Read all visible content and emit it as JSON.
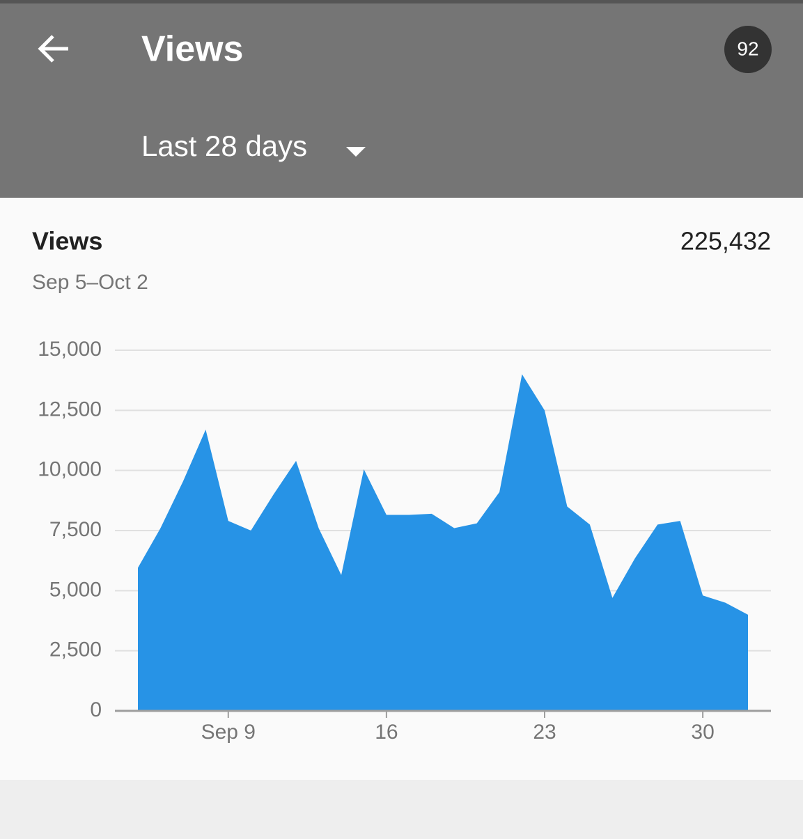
{
  "header": {
    "title": "Views",
    "badge": "92",
    "range": "Last 28 days"
  },
  "card": {
    "title": "Views",
    "total": "225,432",
    "dates": "Sep 5–Oct 2"
  },
  "chart_data": {
    "type": "area",
    "categories": [
      null,
      null,
      null,
      null,
      "Sep 9",
      null,
      null,
      null,
      null,
      null,
      null,
      "16",
      null,
      null,
      null,
      null,
      null,
      null,
      "23",
      null,
      null,
      null,
      null,
      null,
      null,
      "30",
      null,
      null
    ],
    "values": [
      5950,
      7600,
      9550,
      11700,
      7900,
      7500,
      9000,
      10400,
      7600,
      5650,
      10050,
      8150,
      8150,
      8200,
      7600,
      7800,
      9100,
      14000,
      12500,
      8500,
      7750,
      4700,
      6350,
      7750,
      7900,
      4800,
      4500,
      4000
    ],
    "color": "#2793e6",
    "ylim": [
      0,
      15000
    ],
    "yticks": [
      0,
      {
        "value": 2500,
        "label": "2,500"
      },
      {
        "value": 5000,
        "label": "5,000"
      },
      {
        "value": 7500,
        "label": "7,500"
      },
      {
        "value": 10000,
        "label": "10,000"
      },
      {
        "value": 12500,
        "label": "12,500"
      },
      {
        "value": 15000,
        "label": "15,000"
      }
    ],
    "grid": true
  }
}
